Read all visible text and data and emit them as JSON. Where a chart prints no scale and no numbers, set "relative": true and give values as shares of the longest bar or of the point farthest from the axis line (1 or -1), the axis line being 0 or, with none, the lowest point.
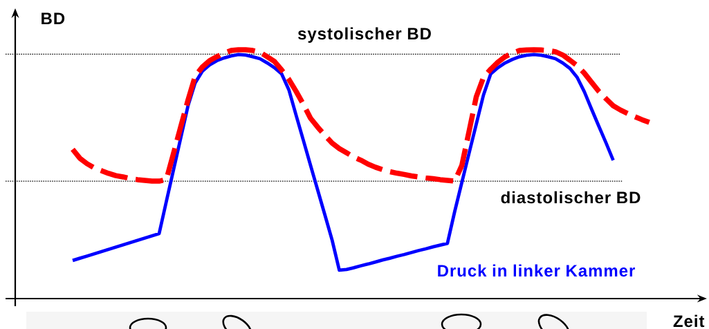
{
  "chart_data": {
    "type": "line",
    "xlabel": "Zeit",
    "ylabel": "BD",
    "relative": true,
    "legend": false,
    "categories": [
      null,
      null,
      null,
      null,
      null,
      null,
      null,
      null,
      null,
      null,
      null,
      null,
      null,
      null,
      null,
      null,
      null,
      null,
      null,
      null,
      null,
      null,
      null,
      null,
      null,
      null,
      null,
      null,
      null,
      null,
      null,
      null,
      null,
      null,
      null,
      null,
      null,
      null,
      null,
      null,
      null,
      null,
      null,
      null,
      null,
      null,
      null,
      null,
      null,
      null,
      null,
      null,
      null,
      null,
      null,
      null,
      null,
      null,
      null,
      null,
      null,
      null,
      null,
      null,
      null,
      null,
      null,
      null,
      null,
      null,
      null,
      null,
      null,
      null,
      null,
      null,
      null,
      null,
      null,
      null,
      null
    ],
    "series": [
      {
        "name": "Druck in linker Kammer",
        "color": "#0000ff",
        "line_style": "solid",
        "values": [
          0.153,
          0.162,
          0.171,
          0.18,
          0.189,
          0.198,
          0.207,
          0.216,
          0.225,
          0.234,
          0.243,
          0.252,
          0.261,
          0.39,
          0.518,
          0.646,
          0.774,
          0.867,
          0.914,
          0.939,
          0.956,
          0.967,
          0.975,
          0.981,
          0.979,
          0.972,
          0.964,
          0.947,
          0.928,
          0.903,
          0.839,
          0.737,
          0.637,
          0.536,
          0.436,
          0.336,
          0.235,
          0.114,
          0.117,
          0.124,
          0.132,
          0.139,
          0.147,
          0.155,
          0.162,
          0.17,
          0.177,
          0.185,
          0.193,
          0.2,
          0.208,
          0.215,
          0.222,
          0.349,
          0.467,
          0.584,
          0.701,
          0.818,
          0.903,
          0.928,
          0.947,
          0.961,
          0.972,
          0.978,
          0.981,
          0.978,
          0.972,
          0.964,
          0.947,
          0.925,
          0.889,
          0.831,
          0.761,
          0.693,
          0.626,
          0.556,
          null,
          null,
          null,
          null,
          null
        ]
      },
      {
        "color": "#ff0000",
        "line_style": "dashed",
        "values": [
          0.6,
          0.564,
          0.542,
          0.525,
          0.514,
          0.503,
          0.494,
          0.489,
          0.482,
          0.478,
          0.475,
          0.472,
          0.472,
          0.478,
          0.584,
          0.691,
          0.797,
          0.894,
          0.931,
          0.956,
          0.972,
          0.986,
          0.997,
          1,
          1,
          0.997,
          0.99,
          0.972,
          0.953,
          0.919,
          0.881,
          0.833,
          0.781,
          0.725,
          0.689,
          0.656,
          0.625,
          0.603,
          0.586,
          0.569,
          0.556,
          0.54,
          0.528,
          0.518,
          0.51,
          0.504,
          0.499,
          0.493,
          0.489,
          0.485,
          0.482,
          0.478,
          0.475,
          0.472,
          0.535,
          0.672,
          0.811,
          0.889,
          0.922,
          0.95,
          0.972,
          0.986,
          0.997,
          0.999,
          1,
          0.999,
          0.997,
          0.992,
          0.979,
          0.958,
          0.936,
          0.906,
          0.869,
          0.833,
          0.803,
          0.775,
          0.758,
          0.744,
          0.731,
          0.719,
          0.708
        ]
      }
    ],
    "ref_lines": [
      {
        "axis": "y",
        "value": 0.982,
        "label": "systolischer BD",
        "color": "#000000",
        "line_style": "dotted"
      },
      {
        "axis": "y",
        "value": 0.472,
        "label": "diastolischer BD",
        "color": "#000000",
        "line_style": "dotted"
      }
    ]
  }
}
